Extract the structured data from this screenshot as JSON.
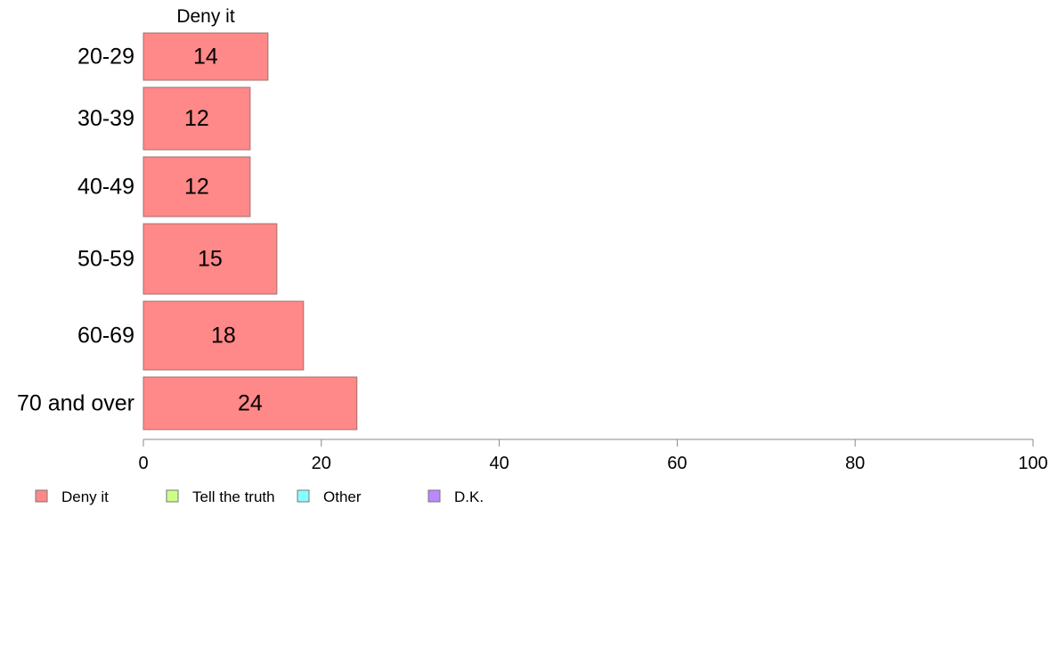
{
  "chart_data": {
    "type": "bar",
    "orientation": "horizontal",
    "series_title": "Deny it",
    "categories": [
      "20-29",
      "30-39",
      "40-49",
      "50-59",
      "60-69",
      "70 and over"
    ],
    "series": [
      {
        "name": "Deny it",
        "values": [
          14,
          12,
          12,
          15,
          18,
          24
        ]
      }
    ],
    "xlim": [
      0,
      100
    ],
    "xticks": [
      0,
      20,
      40,
      60,
      80,
      100
    ],
    "grid": false,
    "legend": {
      "placement": "bottom-left",
      "items": [
        {
          "label": "Deny it",
          "color": "#ff8888"
        },
        {
          "label": "Tell the truth",
          "color": "#ccff88"
        },
        {
          "label": "Other",
          "color": "#88ffff"
        },
        {
          "label": "D.K.",
          "color": "#bb88ff"
        }
      ]
    },
    "colors": {
      "bar": "#ff8888",
      "bar_stroke": "#a07070",
      "axis": "#888888"
    }
  }
}
